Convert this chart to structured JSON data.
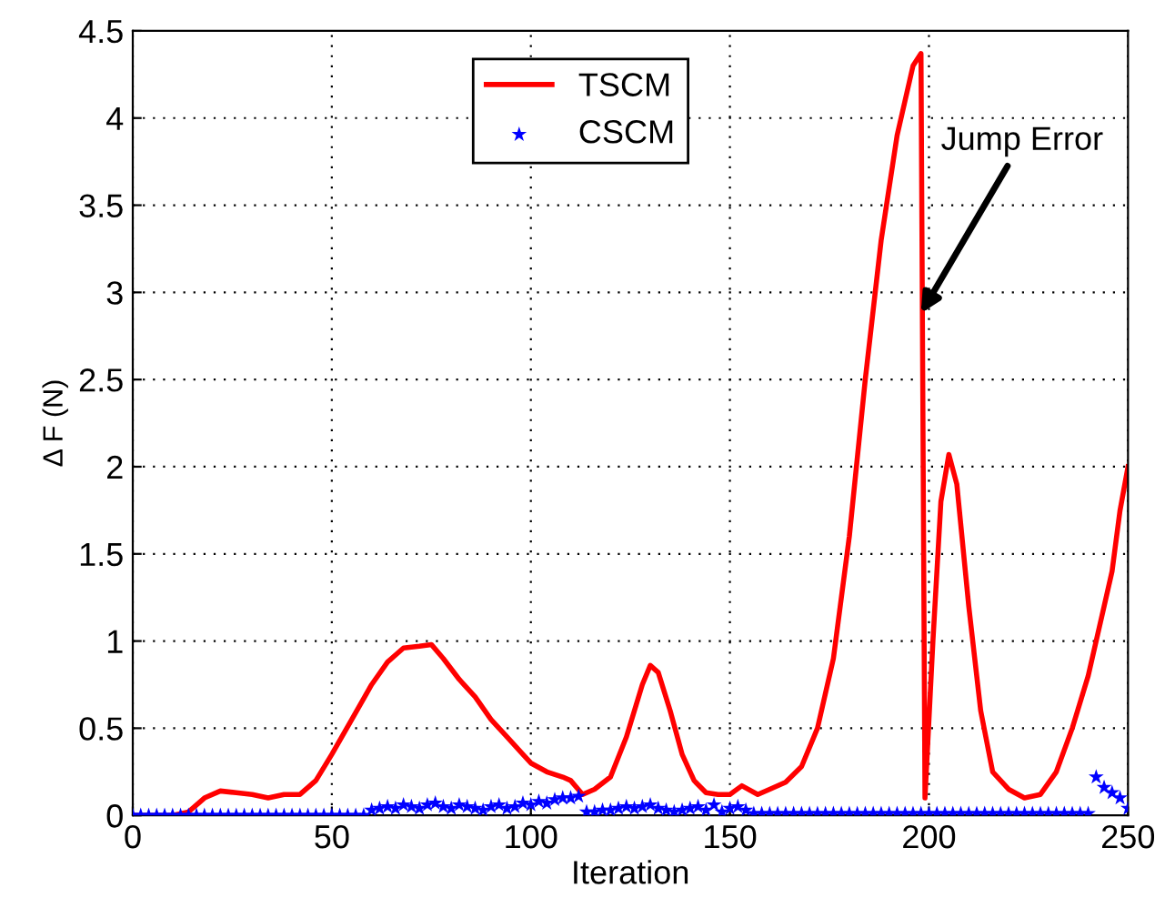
{
  "chart_data": {
    "type": "line",
    "xlabel": "Iteration",
    "ylabel": "Δ F (N)",
    "xlim": [
      0,
      250
    ],
    "ylim": [
      0,
      4.5
    ],
    "xticks": [
      0,
      50,
      100,
      150,
      200,
      250
    ],
    "yticks": [
      0,
      0.5,
      1,
      1.5,
      2,
      2.5,
      3,
      3.5,
      4,
      4.5
    ],
    "grid": true,
    "legend": "top",
    "annotations": [
      {
        "text": "Jump Error",
        "x": 198,
        "y": 2.88
      }
    ],
    "series": [
      {
        "name": "TSCM",
        "type": "line",
        "color": "#ff0000",
        "marker": "none",
        "line_style": "solid",
        "x": [
          0,
          10,
          14,
          18,
          22,
          26,
          30,
          34,
          38,
          42,
          46,
          50,
          55,
          60,
          64,
          68,
          72,
          75,
          78,
          82,
          86,
          90,
          94,
          98,
          100,
          104,
          108,
          110,
          113,
          116,
          120,
          124,
          128,
          130,
          132,
          135,
          138,
          141,
          144,
          147,
          150,
          153,
          157,
          160,
          164,
          168,
          172,
          176,
          180,
          184,
          188,
          192,
          196,
          198,
          199,
          201,
          203,
          205,
          207,
          210,
          213,
          216,
          220,
          224,
          228,
          232,
          236,
          240,
          244,
          246,
          248,
          250
        ],
        "values": [
          0,
          0,
          0.02,
          0.1,
          0.14,
          0.13,
          0.12,
          0.1,
          0.12,
          0.12,
          0.2,
          0.35,
          0.55,
          0.75,
          0.88,
          0.96,
          0.97,
          0.98,
          0.9,
          0.78,
          0.68,
          0.55,
          0.45,
          0.35,
          0.3,
          0.25,
          0.22,
          0.2,
          0.12,
          0.15,
          0.22,
          0.45,
          0.75,
          0.86,
          0.82,
          0.6,
          0.35,
          0.2,
          0.13,
          0.12,
          0.12,
          0.17,
          0.12,
          0.15,
          0.19,
          0.28,
          0.5,
          0.9,
          1.6,
          2.5,
          3.3,
          3.9,
          4.3,
          4.37,
          0.1,
          1.0,
          1.8,
          2.07,
          1.9,
          1.2,
          0.6,
          0.25,
          0.15,
          0.1,
          0.12,
          0.25,
          0.5,
          0.8,
          1.2,
          1.4,
          1.75,
          2.0
        ]
      },
      {
        "name": "CSCM",
        "type": "scatter",
        "color": "#0000ff",
        "marker": "star",
        "x": [
          0,
          2,
          4,
          6,
          8,
          10,
          12,
          14,
          16,
          18,
          20,
          22,
          24,
          26,
          28,
          30,
          32,
          34,
          36,
          38,
          40,
          42,
          44,
          46,
          48,
          50,
          52,
          54,
          56,
          58,
          60,
          62,
          64,
          66,
          68,
          70,
          72,
          74,
          76,
          78,
          80,
          82,
          84,
          86,
          88,
          90,
          92,
          94,
          96,
          98,
          100,
          102,
          104,
          106,
          108,
          110,
          112,
          114,
          116,
          118,
          120,
          122,
          124,
          126,
          128,
          130,
          132,
          134,
          136,
          138,
          140,
          142,
          144,
          146,
          148,
          150,
          152,
          154,
          156,
          158,
          160,
          162,
          164,
          166,
          168,
          170,
          172,
          174,
          176,
          178,
          180,
          182,
          184,
          186,
          188,
          190,
          192,
          194,
          196,
          198,
          200,
          202,
          204,
          206,
          208,
          210,
          212,
          214,
          216,
          218,
          220,
          222,
          224,
          226,
          228,
          230,
          232,
          234,
          236,
          238,
          240,
          242,
          244,
          246,
          248,
          250
        ],
        "values": [
          0,
          0,
          0,
          0,
          0,
          0,
          0,
          0,
          0,
          0,
          0,
          0,
          0,
          0,
          0,
          0,
          0,
          0,
          0,
          0,
          0,
          0,
          0,
          0,
          0,
          0,
          0,
          0,
          0,
          0,
          0.03,
          0.04,
          0.05,
          0.04,
          0.06,
          0.05,
          0.04,
          0.06,
          0.07,
          0.05,
          0.04,
          0.06,
          0.05,
          0.04,
          0.03,
          0.05,
          0.06,
          0.04,
          0.05,
          0.07,
          0.06,
          0.08,
          0.07,
          0.09,
          0.1,
          0.1,
          0.11,
          0.02,
          0.02,
          0.03,
          0.03,
          0.04,
          0.05,
          0.04,
          0.05,
          0.06,
          0.04,
          0.03,
          0.02,
          0.03,
          0.04,
          0.05,
          0.03,
          0.06,
          0.02,
          0.04,
          0.05,
          0.03,
          0.01,
          0.01,
          0.01,
          0.01,
          0.01,
          0.01,
          0.01,
          0.01,
          0.01,
          0.01,
          0.01,
          0.01,
          0.01,
          0.01,
          0.01,
          0.01,
          0.01,
          0.01,
          0.01,
          0.01,
          0.01,
          0.01,
          0.01,
          0.01,
          0.01,
          0.01,
          0.01,
          0.01,
          0.01,
          0.01,
          0.01,
          0.01,
          0.01,
          0.01,
          0.01,
          0.01,
          0.01,
          0.01,
          0.01,
          0.01,
          0.01,
          0.01,
          0.01,
          0.22,
          0.16,
          0.13,
          0.1,
          0.04
        ]
      }
    ]
  }
}
